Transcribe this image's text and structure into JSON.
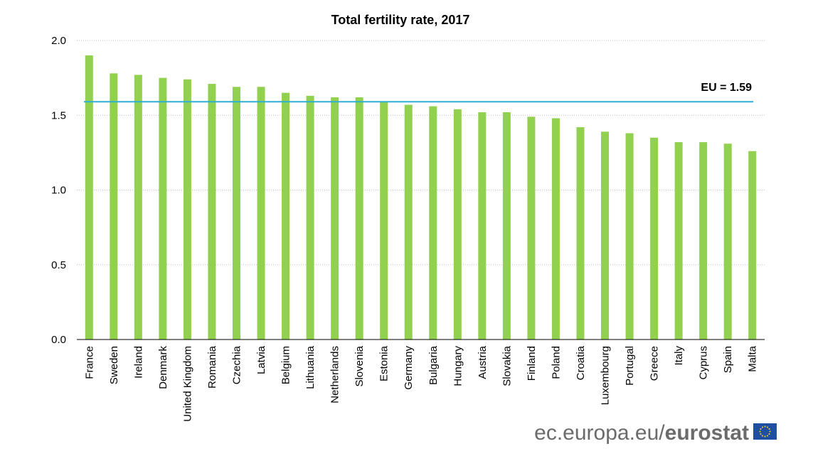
{
  "chart_data": {
    "type": "bar",
    "title": "Total fertility rate, 2017",
    "xlabel": "",
    "ylabel": "",
    "ylim": [
      0,
      2.0
    ],
    "yticks": [
      "0.0",
      "0.5",
      "1.0",
      "1.5",
      "2.0"
    ],
    "grid": true,
    "categories": [
      "France",
      "Sweden",
      "Ireland",
      "Denmark",
      "United Kingdom",
      "Romania",
      "Czechia",
      "Latvia",
      "Belgium",
      "Lithuania",
      "Netherlands",
      "Slovenia",
      "Estonia",
      "Germany",
      "Bulgaria",
      "Hungary",
      "Austria",
      "Slovakia",
      "Finland",
      "Poland",
      "Croatia",
      "Luxembourg",
      "Portugal",
      "Greece",
      "Italy",
      "Cyprus",
      "Spain",
      "Malta"
    ],
    "values": [
      1.9,
      1.78,
      1.77,
      1.75,
      1.74,
      1.71,
      1.69,
      1.69,
      1.65,
      1.63,
      1.62,
      1.62,
      1.59,
      1.57,
      1.56,
      1.54,
      1.52,
      1.52,
      1.49,
      1.48,
      1.42,
      1.39,
      1.38,
      1.35,
      1.32,
      1.32,
      1.31,
      1.26
    ],
    "bar_color": "#92d050",
    "reference_line": {
      "label": "EU = 1.59",
      "value": 1.59,
      "color": "#2eaed6"
    }
  },
  "footer": {
    "source_domain": "ec.europa.eu/",
    "source_brand": "eurostat",
    "flag_colors": {
      "blue": "#1f4fa3",
      "stars": "#ffdd00"
    }
  }
}
